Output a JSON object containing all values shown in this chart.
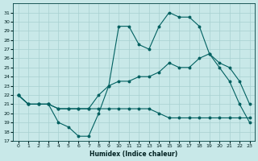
{
  "xlabel": "Humidex (Indice chaleur)",
  "bg_color": "#c8e8e8",
  "line_color": "#006060",
  "grid_color": "#a8d0d0",
  "xlim": [
    -0.5,
    23.5
  ],
  "ylim": [
    17,
    32
  ],
  "xticks": [
    0,
    1,
    2,
    3,
    4,
    5,
    6,
    7,
    8,
    9,
    10,
    11,
    12,
    13,
    14,
    15,
    16,
    17,
    18,
    19,
    20,
    21,
    22,
    23
  ],
  "yticks": [
    17,
    18,
    19,
    20,
    21,
    22,
    23,
    24,
    25,
    26,
    27,
    28,
    29,
    30,
    31
  ],
  "curve_top_x": [
    0,
    1,
    2,
    3,
    4,
    5,
    6,
    7,
    8,
    9,
    10,
    11,
    12,
    13,
    14,
    15,
    16,
    17,
    18,
    19,
    20,
    21,
    22,
    23
  ],
  "curve_top_y": [
    22,
    21,
    21,
    21,
    19,
    18.5,
    17.5,
    17.5,
    20,
    23,
    29.5,
    29.5,
    27.5,
    27,
    29.5,
    31,
    30.5,
    30.5,
    29.5,
    26.5,
    25,
    23.5,
    21,
    19
  ],
  "curve_mid_x": [
    0,
    1,
    2,
    3,
    4,
    5,
    6,
    7,
    8,
    9,
    10,
    11,
    12,
    13,
    14,
    15,
    16,
    17,
    18,
    19,
    20,
    21,
    22,
    23
  ],
  "curve_mid_y": [
    22,
    21,
    21,
    21,
    20.5,
    20.5,
    20.5,
    20.5,
    22,
    23,
    23.5,
    23.5,
    24,
    24,
    24.5,
    25.5,
    25,
    25,
    26,
    26.5,
    25.5,
    25,
    23.5,
    21
  ],
  "curve_bot_x": [
    0,
    1,
    2,
    3,
    4,
    5,
    6,
    7,
    8,
    9,
    10,
    11,
    12,
    13,
    14,
    15,
    16,
    17,
    18,
    19,
    20,
    21,
    22,
    23
  ],
  "curve_bot_y": [
    22,
    21,
    21,
    21,
    20.5,
    20.5,
    20.5,
    20.5,
    20.5,
    20.5,
    20.5,
    20.5,
    20.5,
    20.5,
    20,
    19.5,
    19.5,
    19.5,
    19.5,
    19.5,
    19.5,
    19.5,
    19.5,
    19.5
  ]
}
